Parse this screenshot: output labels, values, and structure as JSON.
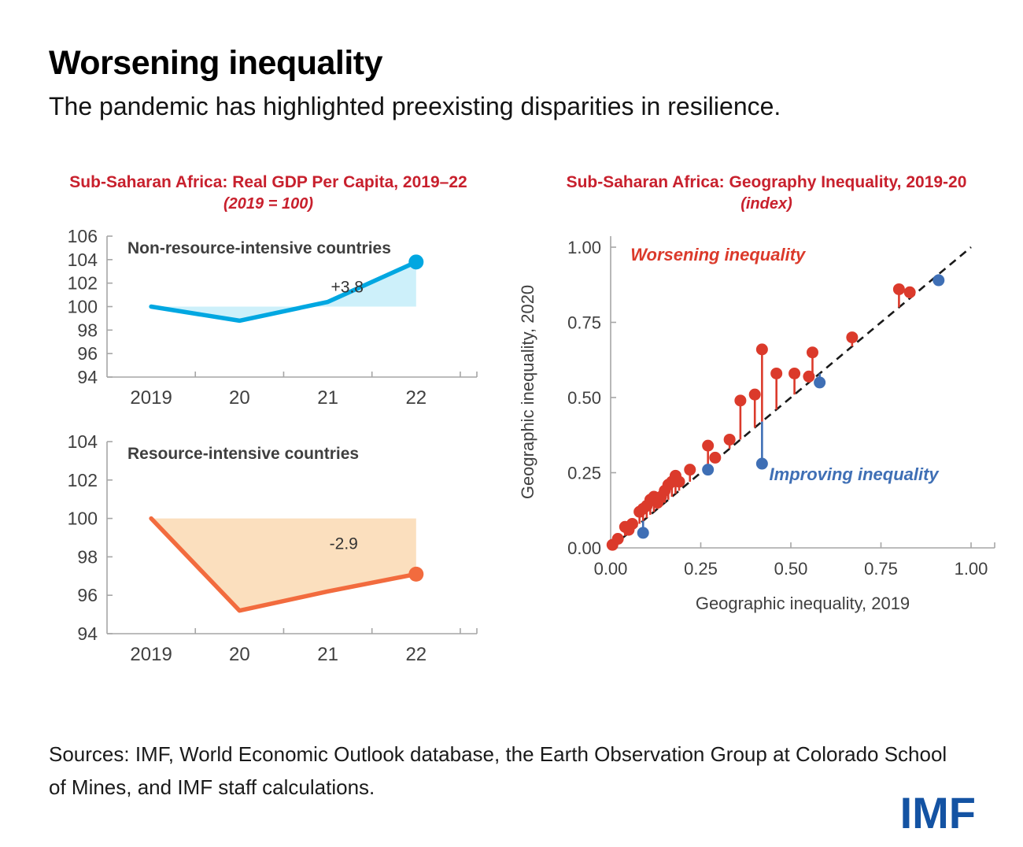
{
  "page": {
    "title": "Worsening inequality",
    "subtitle": "The pandemic has highlighted preexisting disparities in resilience.",
    "sources": "Sources: IMF, World Economic Outlook database, the Earth Observation Group at Colorado School of Mines, and IMF staff calculations.",
    "logo_text": "IMF"
  },
  "colors": {
    "title_red": "#C8202D",
    "axis_gray": "#A6A6A6",
    "tick_text": "#404040",
    "panel_label": "#3F3F3F",
    "annotation_text": "#333333",
    "diagonal_black": "#1a1a1a",
    "logo_blue": "#1453A3"
  },
  "chart_data": [
    {
      "type": "line",
      "title": "Sub-Saharan Africa: Real GDP Per Capita, 2019–22",
      "subtitle": "(2019 = 100)",
      "panel_label": "Non-resource-intensive countries",
      "categories": [
        "2019",
        "20",
        "21",
        "22"
      ],
      "values": [
        100,
        98.8,
        100.4,
        103.8
      ],
      "baseline": 100,
      "ylim": [
        94,
        106
      ],
      "yticks": [
        94,
        96,
        98,
        100,
        102,
        104,
        106
      ],
      "annotation": {
        "text": "+3.8",
        "x": 2.72,
        "y": 101.2
      },
      "line_color": "#00A7E1",
      "fill_color": "#CDF0FA",
      "grid": false
    },
    {
      "type": "line",
      "panel_label": "Resource-intensive countries",
      "categories": [
        "2019",
        "20",
        "21",
        "22"
      ],
      "values": [
        100,
        95.2,
        96.2,
        97.1
      ],
      "baseline": 100,
      "ylim": [
        94,
        104
      ],
      "yticks": [
        94,
        96,
        98,
        100,
        102,
        104
      ],
      "annotation": {
        "text": "-2.9",
        "x": 2.68,
        "y": 98.4
      },
      "line_color": "#F26B3E",
      "fill_color": "#FBDFBE",
      "grid": false
    },
    {
      "type": "scatter",
      "title": "Sub-Saharan Africa: Geography Inequality, 2019-20",
      "subtitle": "(index)",
      "xlabel": "Geographic inequality, 2019",
      "ylabel": "Geographic inequality, 2020",
      "xlim": [
        0,
        1
      ],
      "ylim": [
        0,
        1
      ],
      "xticks": [
        0,
        0.25,
        0.5,
        0.75,
        1
      ],
      "yticks": [
        0,
        0.25,
        0.5,
        0.75,
        1
      ],
      "xtick_labels": [
        "0.00",
        "0.25",
        "0.50",
        "0.75",
        "1.00"
      ],
      "ytick_labels": [
        "0.00",
        "0.25",
        "0.50",
        "0.75",
        "1.00"
      ],
      "diagonal": true,
      "grid": false,
      "legend_position": "none",
      "series": [
        {
          "name": "Worsening inequality",
          "color": "#DB3A2B",
          "points": [
            [
              0.005,
              0.01
            ],
            [
              0.02,
              0.03
            ],
            [
              0.04,
              0.07
            ],
            [
              0.05,
              0.06
            ],
            [
              0.06,
              0.08
            ],
            [
              0.08,
              0.12
            ],
            [
              0.09,
              0.13
            ],
            [
              0.1,
              0.14
            ],
            [
              0.11,
              0.16
            ],
            [
              0.12,
              0.17
            ],
            [
              0.13,
              0.15
            ],
            [
              0.14,
              0.17
            ],
            [
              0.15,
              0.19
            ],
            [
              0.16,
              0.21
            ],
            [
              0.17,
              0.22
            ],
            [
              0.18,
              0.24
            ],
            [
              0.19,
              0.22
            ],
            [
              0.22,
              0.26
            ],
            [
              0.27,
              0.34
            ],
            [
              0.29,
              0.3
            ],
            [
              0.33,
              0.36
            ],
            [
              0.36,
              0.49
            ],
            [
              0.4,
              0.51
            ],
            [
              0.42,
              0.66
            ],
            [
              0.46,
              0.58
            ],
            [
              0.51,
              0.58
            ],
            [
              0.55,
              0.57
            ],
            [
              0.56,
              0.65
            ],
            [
              0.67,
              0.7
            ],
            [
              0.8,
              0.86
            ],
            [
              0.83,
              0.85
            ]
          ]
        },
        {
          "name": "Improving inequality",
          "color": "#3F6FB5",
          "points": [
            [
              0.09,
              0.05
            ],
            [
              0.27,
              0.26
            ],
            [
              0.42,
              0.28
            ],
            [
              0.58,
              0.55
            ],
            [
              0.91,
              0.89
            ]
          ]
        }
      ],
      "annotations": [
        {
          "text": "Worsening inequality",
          "color": "#DB3A2B",
          "x": 0.055,
          "y": 0.955
        },
        {
          "text": "Improving inequality",
          "color": "#3F6FB5",
          "x": 0.44,
          "y": 0.225
        }
      ]
    }
  ]
}
